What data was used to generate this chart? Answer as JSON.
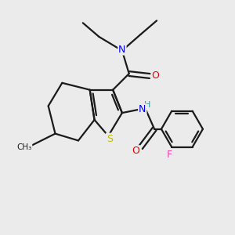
{
  "bg_color": "#ebebeb",
  "bond_color": "#1a1a1a",
  "atom_colors": {
    "N": "#0000ee",
    "O": "#ee0000",
    "S": "#bbbb00",
    "F": "#ee44aa",
    "H": "#339999",
    "C": "#1a1a1a"
  },
  "figsize": [
    3.0,
    3.0
  ],
  "dpi": 100,
  "lw": 1.6
}
